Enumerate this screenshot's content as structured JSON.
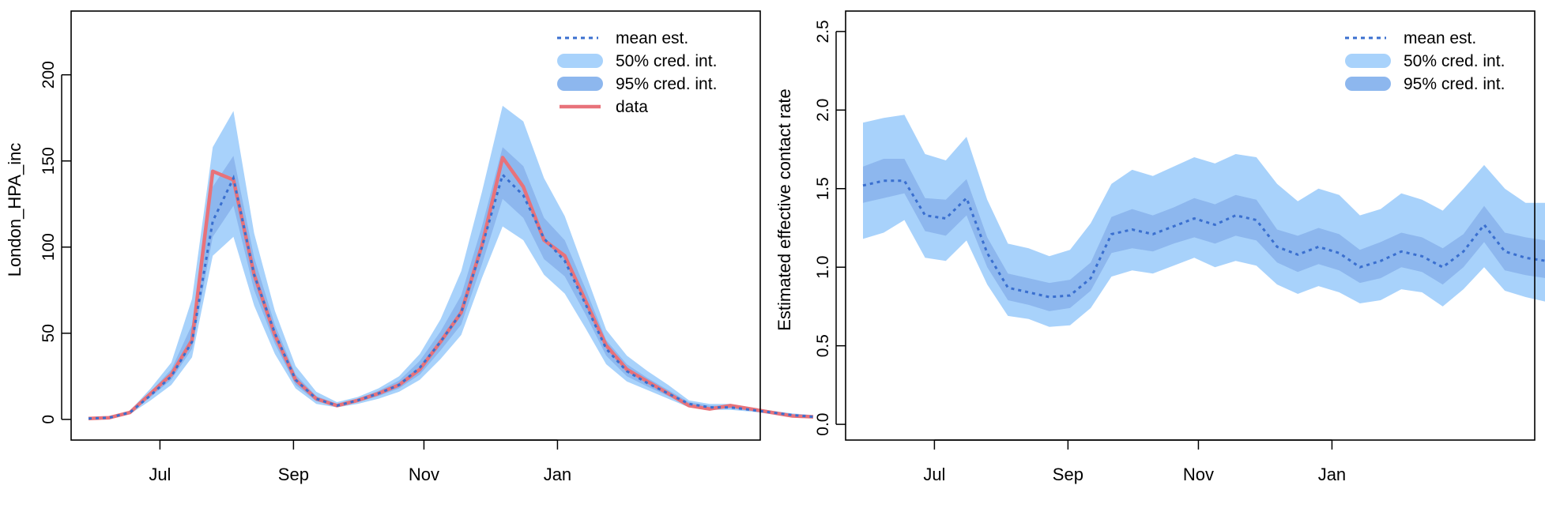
{
  "colors": {
    "band95": "#a8d2fb",
    "band50": "#8db7ee",
    "mean": "#3a6fcf",
    "data": "#e8727a",
    "axis": "#000000"
  },
  "chart_data": [
    {
      "type": "line",
      "title": "",
      "xlabel": "",
      "ylabel": "London_HPA_inc",
      "x_ticks": [
        "Jul",
        "Sep",
        "Nov",
        "Jan"
      ],
      "y_ticks": [
        "0",
        "50",
        "100",
        "150",
        "200"
      ],
      "ylim": [
        -12,
        237
      ],
      "grid": false,
      "legend": {
        "position": "top-right",
        "entries": [
          {
            "label": "mean est.",
            "style": "dashed-line"
          },
          {
            "label": "50% cred. int.",
            "style": "band-light"
          },
          {
            "label": "95% cred. int.",
            "style": "band-dark"
          },
          {
            "label": "data",
            "style": "solid-line"
          }
        ]
      },
      "x_weeks": [
        0,
        1,
        2,
        3,
        4,
        5,
        6,
        7,
        8,
        9,
        10,
        11,
        12,
        13,
        14,
        15,
        16,
        17,
        18,
        19,
        20,
        21,
        22,
        23,
        24,
        25,
        26,
        27,
        28,
        29,
        30,
        31,
        32,
        33,
        34,
        35,
        36,
        37,
        38,
        39
      ],
      "series": [
        {
          "name": "data",
          "values": [
            0.5,
            1,
            4,
            15,
            26,
            46,
            144,
            139,
            84,
            49,
            23,
            12,
            8,
            11,
            15,
            20,
            29,
            45,
            62,
            101,
            152,
            135,
            104,
            95,
            69,
            43,
            29,
            22,
            15,
            8,
            6,
            8,
            6,
            4,
            2,
            1.5
          ]
        },
        {
          "name": "mean est.",
          "values": [
            0.5,
            1,
            4,
            14,
            25,
            45,
            115,
            140,
            84,
            50,
            23,
            12,
            8,
            11,
            15,
            20,
            30,
            45,
            62,
            100,
            142,
            130,
            105,
            92,
            67,
            41,
            28,
            21,
            15,
            9,
            7,
            7,
            5.5,
            4,
            2.5,
            1.5
          ]
        },
        {
          "name": "95% cred. int. lower",
          "values": [
            0.3,
            0.8,
            3,
            11,
            20,
            36,
            95,
            106,
            66,
            38,
            18,
            9,
            7,
            9,
            12,
            16,
            23,
            35,
            49,
            82,
            112,
            104,
            84,
            73,
            53,
            32,
            22,
            17,
            12,
            7,
            5.5,
            5.5,
            4.5,
            3,
            2,
            1.2
          ]
        },
        {
          "name": "95% cred. int. upper",
          "values": [
            0.8,
            1.5,
            5,
            18,
            33,
            70,
            158,
            179,
            108,
            63,
            31,
            16,
            10,
            13,
            18,
            25,
            38,
            58,
            86,
            132,
            182,
            173,
            140,
            118,
            85,
            52,
            37,
            28,
            20,
            11,
            9,
            9,
            7,
            5,
            3.5,
            2.5
          ]
        },
        {
          "name": "50% cred. int. lower",
          "values": [
            0.4,
            0.9,
            3.5,
            13,
            23,
            41,
            106,
            124,
            75,
            44,
            20,
            10.5,
            7.5,
            10,
            13.5,
            18,
            26,
            40,
            55,
            90,
            128,
            117,
            93,
            83,
            61,
            37,
            25,
            19,
            13.5,
            8,
            6,
            6.3,
            5,
            3.5,
            2.2,
            1.3
          ]
        },
        {
          "name": "50% cred. int. upper",
          "values": [
            0.6,
            1.2,
            4.5,
            16,
            29,
            55,
            135,
            153,
            94,
            55,
            26,
            13.5,
            9,
            12,
            16.5,
            22.5,
            34,
            51,
            72,
            112,
            158,
            147,
            117,
            104,
            76,
            46,
            32,
            24,
            17,
            10,
            8,
            8,
            6.2,
            4.5,
            3,
            2
          ]
        }
      ]
    },
    {
      "type": "line",
      "title": "",
      "xlabel": "",
      "ylabel": "Estimated effective contact rate",
      "x_ticks": [
        "Jul",
        "Sep",
        "Nov",
        "Jan"
      ],
      "y_ticks": [
        "0.0",
        "0.5",
        "1.0",
        "1.5",
        "2.0",
        "2.5"
      ],
      "ylim": [
        -0.1,
        2.63
      ],
      "grid": false,
      "legend": {
        "position": "top-right",
        "entries": [
          {
            "label": "mean est.",
            "style": "dashed-line"
          },
          {
            "label": "50% cred. int.",
            "style": "band-light"
          },
          {
            "label": "95% cred. int.",
            "style": "band-dark"
          }
        ]
      },
      "x_weeks": [
        0,
        1,
        2,
        3,
        4,
        5,
        6,
        7,
        8,
        9,
        10,
        11,
        12,
        13,
        14,
        15,
        16,
        17,
        18,
        19,
        20,
        21,
        22,
        23,
        24,
        25,
        26,
        27,
        28,
        29,
        30,
        31,
        32,
        33,
        34,
        35,
        36,
        37,
        38,
        39
      ],
      "series": [
        {
          "name": "mean est.",
          "values": [
            1.52,
            1.55,
            1.55,
            1.33,
            1.31,
            1.44,
            1.09,
            0.87,
            0.84,
            0.81,
            0.82,
            0.93,
            1.21,
            1.24,
            1.21,
            1.26,
            1.31,
            1.27,
            1.33,
            1.3,
            1.13,
            1.08,
            1.13,
            1.09,
            1.0,
            1.04,
            1.1,
            1.07,
            1.0,
            1.1,
            1.27,
            1.1,
            1.06,
            1.04,
            1.04
          ]
        },
        {
          "name": "95% cred. int. lower",
          "values": [
            1.18,
            1.22,
            1.3,
            1.06,
            1.04,
            1.17,
            0.89,
            0.69,
            0.67,
            0.62,
            0.63,
            0.74,
            0.94,
            0.98,
            0.96,
            1.01,
            1.06,
            1.0,
            1.04,
            1.01,
            0.89,
            0.83,
            0.88,
            0.84,
            0.77,
            0.79,
            0.86,
            0.84,
            0.75,
            0.86,
            1.0,
            0.85,
            0.81,
            0.78,
            0.68
          ]
        },
        {
          "name": "95% cred. int. upper",
          "values": [
            1.92,
            1.95,
            1.97,
            1.72,
            1.68,
            1.83,
            1.43,
            1.15,
            1.12,
            1.07,
            1.11,
            1.28,
            1.53,
            1.62,
            1.58,
            1.64,
            1.7,
            1.66,
            1.72,
            1.7,
            1.53,
            1.42,
            1.5,
            1.46,
            1.33,
            1.37,
            1.47,
            1.43,
            1.36,
            1.5,
            1.65,
            1.5,
            1.41,
            1.41,
            1.5
          ]
        },
        {
          "name": "50% cred. int. lower",
          "values": [
            1.41,
            1.44,
            1.47,
            1.23,
            1.2,
            1.33,
            1.0,
            0.79,
            0.76,
            0.72,
            0.74,
            0.85,
            1.09,
            1.12,
            1.1,
            1.15,
            1.19,
            1.15,
            1.2,
            1.17,
            1.03,
            0.97,
            1.02,
            0.98,
            0.9,
            0.93,
            1.0,
            0.97,
            0.89,
            1.0,
            1.16,
            0.98,
            0.95,
            0.93,
            0.91
          ]
        },
        {
          "name": "50% cred. int. upper",
          "values": [
            1.64,
            1.69,
            1.69,
            1.44,
            1.43,
            1.56,
            1.19,
            0.96,
            0.93,
            0.9,
            0.92,
            1.03,
            1.32,
            1.37,
            1.33,
            1.38,
            1.44,
            1.4,
            1.46,
            1.43,
            1.24,
            1.2,
            1.25,
            1.21,
            1.11,
            1.16,
            1.22,
            1.19,
            1.12,
            1.21,
            1.39,
            1.22,
            1.19,
            1.17,
            1.18
          ]
        }
      ]
    }
  ]
}
